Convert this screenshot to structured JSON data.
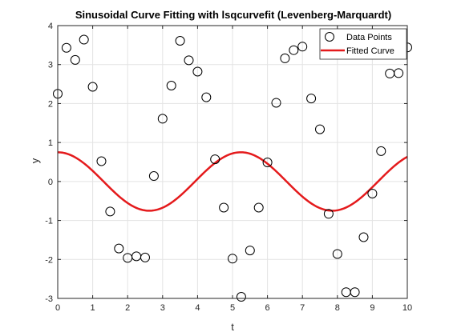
{
  "chart_data": {
    "type": "scatter",
    "title": "Sinusoidal Curve Fitting with lsqcurvefit (Levenberg-Marquardt)",
    "xlabel": "t",
    "ylabel": "y",
    "xlim": [
      0,
      10
    ],
    "ylim": [
      -3,
      4
    ],
    "xticks": [
      0,
      1,
      2,
      3,
      4,
      5,
      6,
      7,
      8,
      9,
      10
    ],
    "yticks": [
      -3,
      -2,
      -1,
      0,
      1,
      2,
      3,
      4
    ],
    "xtick_labels": [
      "0",
      "1",
      "2",
      "3",
      "4",
      "5",
      "6",
      "7",
      "8",
      "9",
      "10"
    ],
    "ytick_labels": [
      "-3",
      "-2",
      "-1",
      "0",
      "1",
      "2",
      "3",
      "4"
    ],
    "grid": true,
    "legend_position": "top-right",
    "series": [
      {
        "name": "Data Points",
        "kind": "scatter",
        "marker": "open-circle",
        "color": "#000000",
        "x": [
          0,
          0.25,
          0.5,
          0.75,
          1.0,
          1.25,
          1.5,
          1.75,
          2.0,
          2.25,
          2.5,
          2.75,
          3.0,
          3.25,
          3.5,
          3.75,
          4.0,
          4.25,
          4.5,
          4.75,
          5.0,
          5.25,
          5.5,
          5.75,
          6.0,
          6.25,
          6.5,
          6.75,
          7.0,
          7.25,
          7.5,
          7.75,
          8.0,
          8.25,
          8.5,
          8.75,
          9.0,
          9.25,
          9.5,
          9.75,
          10.0
        ],
        "y": [
          2.25,
          3.43,
          3.12,
          3.64,
          2.43,
          0.52,
          -0.77,
          -1.72,
          -1.96,
          -1.92,
          -1.95,
          0.14,
          1.61,
          2.46,
          3.61,
          3.11,
          2.82,
          2.16,
          0.57,
          -0.67,
          -1.98,
          -2.96,
          -1.77,
          -0.67,
          0.49,
          2.02,
          3.16,
          3.37,
          3.46,
          2.13,
          1.34,
          -0.83,
          -1.86,
          -2.84,
          -2.84,
          -1.43,
          -0.31,
          0.78,
          2.77,
          2.78,
          3.44
        ]
      },
      {
        "name": "Fitted Curve",
        "kind": "line",
        "color": "#e41a1c",
        "function": "y = A*sin(w*t + phi)",
        "params": {
          "A": 0.75,
          "w": 1.2,
          "phi": 1.57
        },
        "t_range": [
          0,
          10
        ]
      }
    ]
  }
}
